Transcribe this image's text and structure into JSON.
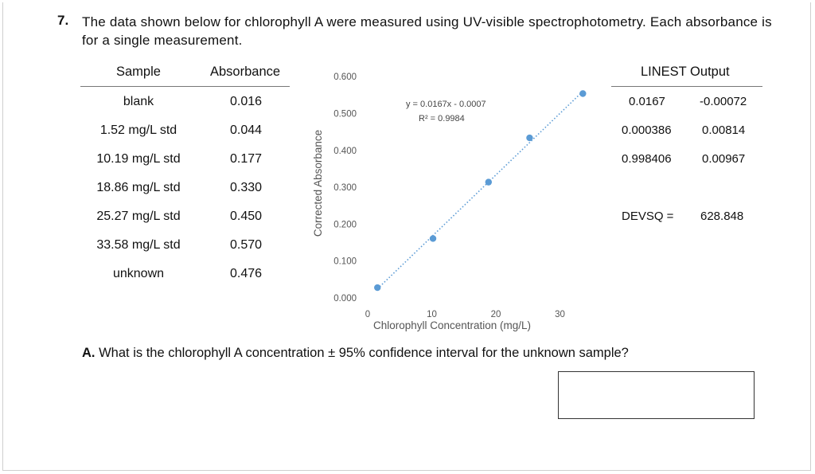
{
  "question": {
    "number": "7.",
    "text": "The data shown below for chlorophyll A were measured using UV-visible spectrophotometry. Each absorbance is for a single measurement."
  },
  "data_table": {
    "headers": [
      "Sample",
      "Absorbance"
    ],
    "rows": [
      {
        "sample": "blank",
        "absorbance": "0.016"
      },
      {
        "sample": "1.52 mg/L std",
        "absorbance": "0.044"
      },
      {
        "sample": "10.19 mg/L std",
        "absorbance": "0.177"
      },
      {
        "sample": "18.86 mg/L std",
        "absorbance": "0.330"
      },
      {
        "sample": "25.27 mg/L std",
        "absorbance": "0.450"
      },
      {
        "sample": "33.58 mg/L std",
        "absorbance": "0.570"
      },
      {
        "sample": "unknown",
        "absorbance": "0.476"
      }
    ]
  },
  "linest": {
    "title": "LINEST Output",
    "rows": [
      [
        "0.0167",
        "-0.00072"
      ],
      [
        "0.000386",
        "0.00814"
      ],
      [
        "0.998406",
        "0.00967"
      ]
    ],
    "devsq_label": "DEVSQ =",
    "devsq_value": "628.848"
  },
  "chart_data": {
    "type": "scatter",
    "xlabel": "Chlorophyll Concentration (mg/L)",
    "ylabel": "Corrected Absorbance",
    "xlim": [
      0,
      40
    ],
    "ylim": [
      0,
      0.6
    ],
    "x_ticks": [
      "0",
      "10",
      "20",
      "30"
    ],
    "y_ticks": [
      "0.000",
      "0.100",
      "0.200",
      "0.300",
      "0.400",
      "0.500",
      "0.600"
    ],
    "points": [
      {
        "x": 1.52,
        "y": 0.028
      },
      {
        "x": 10.19,
        "y": 0.161
      },
      {
        "x": 18.86,
        "y": 0.314
      },
      {
        "x": 25.27,
        "y": 0.434
      },
      {
        "x": 33.58,
        "y": 0.554
      }
    ],
    "trendline": {
      "slope": 0.0167,
      "intercept": -0.0007,
      "x_range": [
        1.52,
        33.58
      ]
    },
    "equation": "y = 0.0167x - 0.0007",
    "r_squared": "R² = 0.9984",
    "point_color": "#5B9BD5",
    "grid": false
  },
  "partA": {
    "label": "A.",
    "text": "What is the chlorophyll A concentration ± 95% confidence interval for the unknown sample?"
  }
}
